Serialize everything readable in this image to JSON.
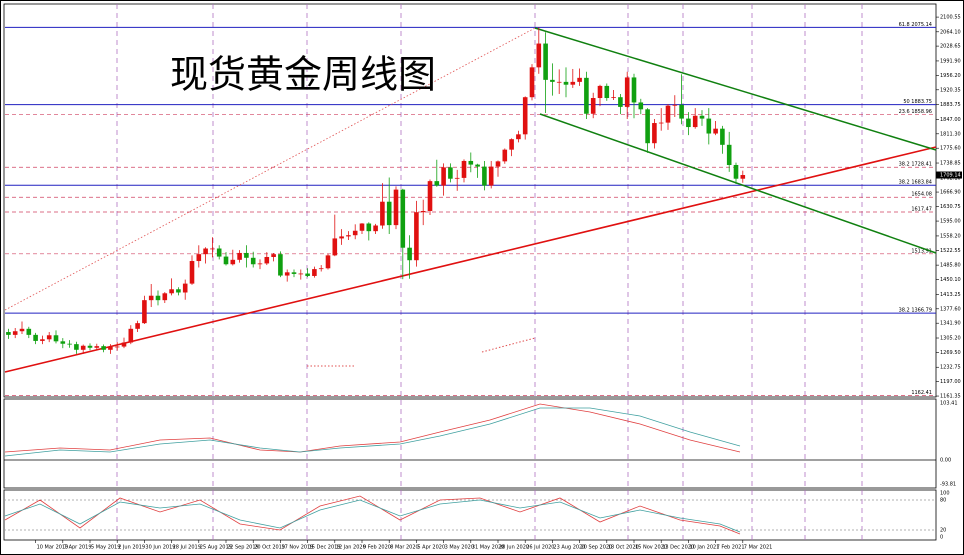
{
  "chart_data": {
    "type": "candlestick",
    "title": "现货黄金周线图",
    "up_color": "#e01010",
    "down_color": "#10a010",
    "ylim": [
      1159,
      2133
    ],
    "yticks": [
      2100.55,
      {
        "value": 2064.1,
        "label": "2064.10"
      },
      2028.65,
      {
        "value": 1991.9,
        "label": "1991.90"
      },
      {
        "value": 1956.2,
        "label": "1956.20"
      },
      1920.35,
      1883.75,
      {
        "value": 1847,
        "label": "1847.00"
      },
      {
        "value": 1811.3,
        "label": "1811.30"
      },
      {
        "value": 1775.6,
        "label": "1775.60"
      },
      1738.85,
      {
        "value": 1702.1,
        "label": "1702.10"
      },
      {
        "value": 1666.9,
        "label": "1666.90"
      },
      1630.75,
      {
        "value": 1595,
        "label": "1595.00"
      },
      {
        "value": 1558.2,
        "label": "1558.20"
      },
      1522.55,
      {
        "value": 1485.8,
        "label": "1485.80"
      },
      {
        "value": 1450.1,
        "label": "1450.10"
      },
      1413.25,
      {
        "value": 1377.6,
        "label": "1377.60"
      },
      {
        "value": 1341.9,
        "label": "1341.90"
      },
      {
        "value": 1305.2,
        "label": "1305.20"
      },
      {
        "value": 1269.5,
        "label": "1269.50"
      },
      1232.75,
      {
        "value": 1197,
        "label": "1197.00"
      },
      1161.35
    ],
    "categories": [
      null,
      null,
      null,
      null,
      "10 Mar 2019",
      null,
      null,
      null,
      "7 Apr 2019",
      null,
      null,
      null,
      "5 May 2019",
      null,
      null,
      null,
      "2 Jun 2019",
      null,
      null,
      null,
      "30 Jun 2019",
      null,
      null,
      null,
      "28 Jul 2019",
      null,
      null,
      null,
      "25 Aug 2019",
      null,
      null,
      null,
      "22 Sep 2019",
      null,
      null,
      null,
      "20 Oct 2019",
      null,
      null,
      null,
      "17 Nov 2019",
      null,
      null,
      null,
      "15 Dec 2019",
      null,
      null,
      null,
      "12 Jan 2020",
      null,
      null,
      null,
      "9 Feb 2020",
      null,
      null,
      null,
      "8 Mar 2020",
      null,
      null,
      null,
      "5 Apr 2020",
      null,
      null,
      null,
      "3 May 2020",
      null,
      null,
      null,
      "31 May 2020",
      null,
      null,
      null,
      "28 Jun 2020",
      null,
      null,
      null,
      "26 Jul 2020",
      null,
      null,
      null,
      "23 Aug 2020",
      null,
      null,
      null,
      "20 Sep 2020",
      null,
      null,
      null,
      "18 Oct 2020",
      null,
      null,
      null,
      "15 Nov 2020",
      null,
      null,
      null,
      "13 Dec 2020",
      null,
      null,
      null,
      "10 Jan 2021",
      null,
      null,
      null,
      "7 Feb 2021",
      null,
      null,
      null,
      "7 Mar 2021"
    ],
    "open": [
      1320,
      1313,
      1322,
      1328,
      1313,
      1298,
      1302,
      1312,
      1297,
      1291,
      1290,
      1276,
      1286,
      1281,
      1285,
      1276,
      1283,
      1284,
      1294,
      1328,
      1342,
      1399,
      1410,
      1399,
      1416,
      1426,
      1418,
      1440,
      1496,
      1513,
      1527,
      1527,
      1507,
      1488,
      1499,
      1516,
      1504,
      1488,
      1490,
      1506,
      1513,
      1460,
      1468,
      1464,
      1465,
      1459,
      1476,
      1478,
      1510,
      1552,
      1557,
      1560,
      1571,
      1589,
      1570,
      1584,
      1643,
      1585,
      1673,
      1529,
      1498,
      1617,
      1620,
      1694,
      1683,
      1728,
      1700,
      1702,
      1744,
      1735,
      1730,
      1683,
      1730,
      1743,
      1772,
      1798,
      1810,
      1902,
      1976,
      2035,
      1945,
      1940,
      1940,
      1933,
      1940,
      1950,
      1861,
      1900,
      1930,
      1900,
      1902,
      1878,
      1951,
      1889,
      1872,
      1788,
      1838,
      1839,
      1881,
      1883,
      1849,
      1828,
      1856,
      1849,
      1812,
      1824,
      1784,
      1734,
      1700
    ],
    "high": [
      1328,
      1330,
      1346,
      1333,
      1318,
      1311,
      1320,
      1324,
      1305,
      1300,
      1296,
      1289,
      1292,
      1291,
      1289,
      1290,
      1295,
      1306,
      1337,
      1348,
      1410,
      1439,
      1423,
      1419,
      1453,
      1431,
      1450,
      1510,
      1535,
      1530,
      1555,
      1535,
      1518,
      1524,
      1523,
      1535,
      1519,
      1500,
      1518,
      1516,
      1520,
      1475,
      1475,
      1475,
      1478,
      1482,
      1486,
      1514,
      1611,
      1575,
      1570,
      1587,
      1590,
      1592,
      1588,
      1689,
      1703,
      1681,
      1675,
      1560,
      1645,
      1648,
      1698,
      1747,
      1738,
      1738,
      1722,
      1748,
      1765,
      1737,
      1744,
      1744,
      1745,
      1775,
      1800,
      1819,
      1904,
      1984,
      2075,
      2063,
      1986,
      1971,
      1976,
      1972,
      1973,
      1965,
      1913,
      1933,
      1936,
      1920,
      1910,
      1965,
      1960,
      1898,
      1875,
      1848,
      1875,
      1885,
      1907,
      1959,
      1865,
      1875,
      1870,
      1875,
      1843,
      1831,
      1816,
      1740,
      1720
    ],
    "low": [
      1303,
      1305,
      1315,
      1305,
      1290,
      1290,
      1295,
      1292,
      1280,
      1281,
      1266,
      1266,
      1275,
      1276,
      1270,
      1266,
      1274,
      1280,
      1290,
      1320,
      1340,
      1382,
      1386,
      1392,
      1411,
      1411,
      1400,
      1437,
      1480,
      1490,
      1505,
      1500,
      1485,
      1485,
      1492,
      1480,
      1480,
      1476,
      1486,
      1495,
      1456,
      1445,
      1456,
      1450,
      1456,
      1455,
      1470,
      1475,
      1508,
      1536,
      1548,
      1550,
      1563,
      1547,
      1563,
      1576,
      1563,
      1575,
      1451,
      1452,
      1482,
      1585,
      1610,
      1680,
      1658,
      1691,
      1670,
      1691,
      1716,
      1702,
      1671,
      1676,
      1705,
      1737,
      1756,
      1790,
      1797,
      1894,
      1960,
      1863,
      1906,
      1910,
      1902,
      1925,
      1930,
      1848,
      1850,
      1880,
      1893,
      1895,
      1860,
      1848,
      1850,
      1860,
      1764,
      1775,
      1819,
      1821,
      1853,
      1835,
      1808,
      1824,
      1831,
      1785,
      1808,
      1762,
      1717,
      1687,
      1690
    ],
    "close": [
      1313,
      1322,
      1328,
      1313,
      1298,
      1302,
      1312,
      1297,
      1291,
      1290,
      1276,
      1286,
      1281,
      1285,
      1276,
      1283,
      1284,
      1294,
      1328,
      1342,
      1399,
      1410,
      1399,
      1416,
      1426,
      1418,
      1440,
      1496,
      1513,
      1527,
      1527,
      1507,
      1488,
      1499,
      1516,
      1504,
      1488,
      1490,
      1506,
      1513,
      1460,
      1468,
      1464,
      1465,
      1459,
      1476,
      1478,
      1510,
      1552,
      1557,
      1560,
      1571,
      1589,
      1570,
      1584,
      1643,
      1585,
      1673,
      1529,
      1498,
      1617,
      1620,
      1694,
      1683,
      1728,
      1700,
      1702,
      1744,
      1735,
      1730,
      1683,
      1730,
      1743,
      1772,
      1798,
      1810,
      1902,
      1976,
      2035,
      1945,
      1940,
      1940,
      1933,
      1940,
      1950,
      1861,
      1900,
      1930,
      1900,
      1902,
      1878,
      1951,
      1889,
      1872,
      1788,
      1838,
      1839,
      1881,
      1883,
      1849,
      1828,
      1856,
      1849,
      1812,
      1824,
      1784,
      1734,
      1700,
      1709.14
    ],
    "levels": [
      {
        "value": 2075.14,
        "label": "61.8 2075.14",
        "color": "#2020c0"
      },
      {
        "value": 1883.75,
        "label": "50 1883.75",
        "color": "#2020c0"
      },
      {
        "value": 1858.96,
        "label": "23.6 1858.96",
        "color": "#d04060"
      },
      {
        "value": 1728.41,
        "label": "38.2 1728.41",
        "color": "#d04060"
      },
      {
        "value": 1683.84,
        "label": "38.2 1683.84",
        "color": "#2020c0"
      },
      {
        "value": 1654.08,
        "label": "1654.08",
        "color": "#d04060"
      },
      {
        "value": 1617.47,
        "label": "1617.47",
        "color": "#d04060"
      },
      {
        "value": 1513.91,
        "label": "1513.91",
        "color": "#d04060"
      },
      {
        "value": 1366.79,
        "label": "38.2 1366.79",
        "color": "#2020c0"
      },
      {
        "value": 1162.41,
        "label": "1162.41",
        "color": "#d04060"
      }
    ],
    "macd_labels": [
      "103.41",
      "0.00",
      "-93.81"
    ],
    "stoch_labels": [
      "100",
      "80",
      "20",
      "0"
    ]
  }
}
